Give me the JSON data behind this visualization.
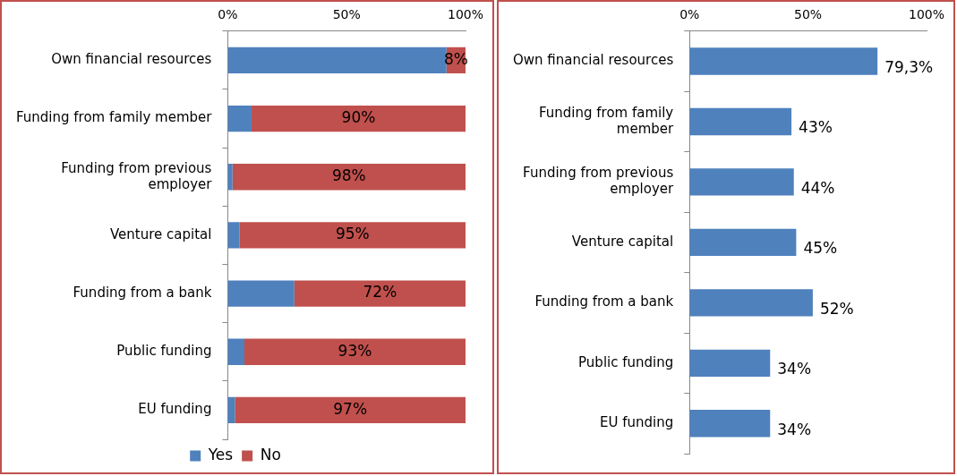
{
  "chart_data": [
    {
      "type": "bar",
      "orientation": "horizontal",
      "stacked": true,
      "categories": [
        "Own financial resources",
        "Funding from family member",
        "Funding from previous employer",
        "Venture capital",
        "Funding from a bank",
        "Public funding",
        "EU funding"
      ],
      "series": [
        {
          "name": "Yes",
          "color": "#4f81bd",
          "values": [
            92,
            10,
            2,
            5,
            28,
            7,
            3
          ]
        },
        {
          "name": "No",
          "color": "#c0504d",
          "values": [
            8,
            90,
            98,
            95,
            72,
            93,
            97
          ],
          "value_labels": [
            "8%",
            "90%",
            "98%",
            "95%",
            "72%",
            "93%",
            "97%"
          ]
        }
      ],
      "xlim": [
        0,
        100
      ],
      "xticks": [
        {
          "value": 0,
          "label": "0%"
        },
        {
          "value": 50,
          "label": "50%"
        },
        {
          "value": 100,
          "label": "100%"
        }
      ],
      "grid": false,
      "legend": "bottom"
    },
    {
      "type": "bar",
      "orientation": "horizontal",
      "categories": [
        "Own financial resources",
        "Funding from family member",
        "Funding from previous employer",
        "Venture capital",
        "Funding from a bank",
        "Public funding",
        "EU funding"
      ],
      "series": [
        {
          "color": "#4f81bd",
          "values": [
            79.3,
            43,
            44,
            45,
            52,
            34,
            34
          ],
          "value_labels": [
            "79,3%",
            "43%",
            "44%",
            "45%",
            "52%",
            "34%",
            "34%"
          ]
        }
      ],
      "xlim": [
        0,
        100
      ],
      "xticks": [
        {
          "value": 0,
          "label": "0%"
        },
        {
          "value": 50,
          "label": "50%"
        },
        {
          "value": 100,
          "label": "100%"
        }
      ],
      "grid": false,
      "legend": false
    }
  ]
}
